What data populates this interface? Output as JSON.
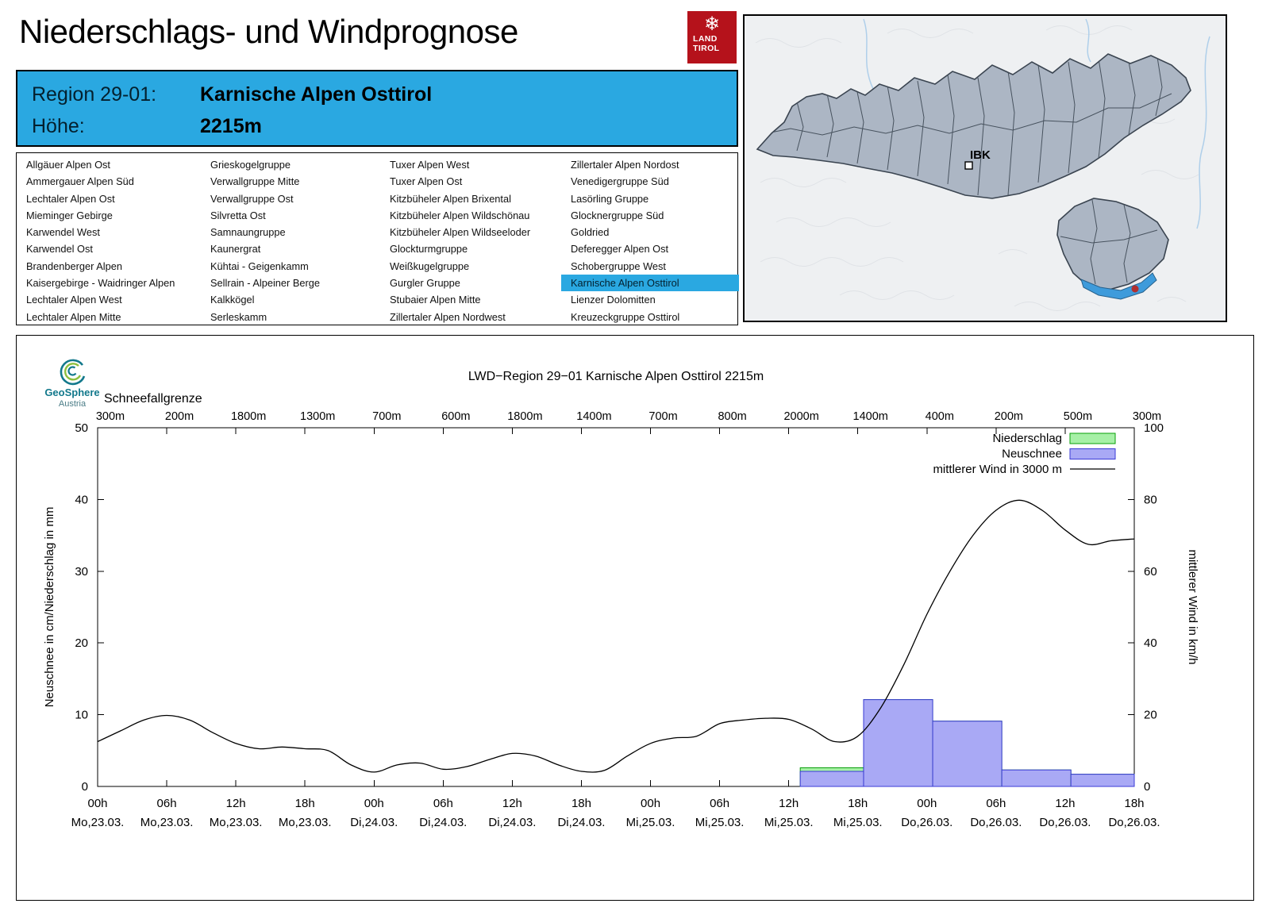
{
  "header": {
    "title": "Niederschlags- und Windprognose",
    "logo_line1": "LAND",
    "logo_line2": "TIROL",
    "logo_color": "#B5121B"
  },
  "region_box": {
    "region_label": "Region 29-01:",
    "region_value": "Karnische Alpen Osttirol",
    "hoehe_label": "Höhe:",
    "hoehe_value": "2215m",
    "background": "#2AA8E1"
  },
  "map": {
    "city_label": "IBK",
    "highlight_region": "Karnische Alpen Osttirol",
    "highlight_color": "#3E9BDB",
    "marker_color": "#B03030"
  },
  "region_list": {
    "selected": "Karnische Alpen Osttirol",
    "columns": [
      [
        "Allgäuer Alpen Ost",
        "Ammergauer Alpen Süd",
        "Lechtaler Alpen Ost",
        "Mieminger Gebirge",
        "Karwendel West",
        "Karwendel Ost",
        "Brandenberger Alpen",
        "Kaisergebirge - Waidringer Alpen",
        "Lechtaler Alpen West",
        "Lechtaler Alpen Mitte"
      ],
      [
        "Grieskogelgruppe",
        "Verwallgruppe Mitte",
        "Verwallgruppe Ost",
        "Silvretta Ost",
        "Samnaungruppe",
        "Kaunergrat",
        "Kühtai - Geigenkamm",
        "Sellrain - Alpeiner Berge",
        "Kalkkögel",
        "Serleskamm"
      ],
      [
        "Tuxer Alpen West",
        "Tuxer Alpen Ost",
        "Kitzbüheler Alpen Brixental",
        "Kitzbüheler Alpen Wildschönau",
        "Kitzbüheler Alpen Wildseeloder",
        "Glockturmgruppe",
        "Weißkugelgruppe",
        "Gurgler Gruppe",
        "Stubaier Alpen Mitte",
        "Zillertaler Alpen Nordwest"
      ],
      [
        "Zillertaler Alpen Nordost",
        "Venedigergruppe Süd",
        "Lasörling Gruppe",
        "Glocknergruppe Süd",
        "Goldried",
        "Deferegger Alpen Ost",
        "Schobergruppe West",
        "Karnische Alpen Osttirol",
        "Lienzer Dolomitten",
        "Kreuzeckgruppe Osttirol"
      ]
    ]
  },
  "geosphere_logo": {
    "name": "GeoSphere",
    "sub": "Austria"
  },
  "chart_data": {
    "type": "bar+line",
    "title": "LWD−Region 29−01 Karnische Alpen Osttirol 2215m",
    "snowline_label": "Schneefallgrenze",
    "snowline_values": [
      "300m",
      "200m",
      "1800m",
      "1300m",
      "700m",
      "600m",
      "1800m",
      "1400m",
      "700m",
      "800m",
      "2000m",
      "1400m",
      "400m",
      "200m",
      "500m",
      "300m"
    ],
    "ylabel_left": "Neuschnee in cm/Niederschlag in mm",
    "ylabel_right": "mittlerer Wind in km/h",
    "ylim_left": [
      0,
      50
    ],
    "yticks_left": [
      0,
      10,
      20,
      30,
      40,
      50
    ],
    "ylim_right": [
      0,
      100
    ],
    "yticks_right": [
      0,
      20,
      40,
      60,
      80,
      100
    ],
    "x_range_hours": [
      0,
      90
    ],
    "x_ticks": [
      {
        "hour": 0,
        "time": "00h",
        "date": "Mo,23.03."
      },
      {
        "hour": 6,
        "time": "06h",
        "date": "Mo,23.03."
      },
      {
        "hour": 12,
        "time": "12h",
        "date": "Mo,23.03."
      },
      {
        "hour": 18,
        "time": "18h",
        "date": "Mo,23.03."
      },
      {
        "hour": 24,
        "time": "00h",
        "date": "Di,24.03."
      },
      {
        "hour": 30,
        "time": "06h",
        "date": "Di,24.03."
      },
      {
        "hour": 36,
        "time": "12h",
        "date": "Di,24.03."
      },
      {
        "hour": 42,
        "time": "18h",
        "date": "Di,24.03."
      },
      {
        "hour": 48,
        "time": "00h",
        "date": "Mi,25.03."
      },
      {
        "hour": 54,
        "time": "06h",
        "date": "Mi,25.03."
      },
      {
        "hour": 60,
        "time": "12h",
        "date": "Mi,25.03."
      },
      {
        "hour": 66,
        "time": "18h",
        "date": "Mi,25.03."
      },
      {
        "hour": 72,
        "time": "00h",
        "date": "Do,26.03."
      },
      {
        "hour": 78,
        "time": "06h",
        "date": "Do,26.03."
      },
      {
        "hour": 84,
        "time": "12h",
        "date": "Do,26.03."
      },
      {
        "hour": 90,
        "time": "18h",
        "date": "Do,26.03."
      }
    ],
    "legend": [
      {
        "label": "Niederschlag",
        "swatch": "bar",
        "fill": "#A6F0A6",
        "stroke": "#0AA00A"
      },
      {
        "label": "Neuschnee",
        "swatch": "bar",
        "fill": "#A9A9F5",
        "stroke": "#3B3BD6"
      },
      {
        "label": "mittlerer Wind in 3000 m",
        "swatch": "line",
        "stroke": "#000000"
      }
    ],
    "bars": [
      {
        "start": 61,
        "end": 66.5,
        "niederschlag_mm": 2.6,
        "neuschnee_cm": 2.1
      },
      {
        "start": 66.5,
        "end": 72.5,
        "niederschlag_mm": 12.1,
        "neuschnee_cm": 12.1
      },
      {
        "start": 72.5,
        "end": 78.5,
        "niederschlag_mm": 9.1,
        "neuschnee_cm": 9.1
      },
      {
        "start": 78.5,
        "end": 84.5,
        "niederschlag_mm": 2.3,
        "neuschnee_cm": 2.3
      },
      {
        "start": 84.5,
        "end": 90,
        "niederschlag_mm": 1.7,
        "neuschnee_cm": 1.7
      }
    ],
    "wind_series": {
      "unit": "km/h",
      "axis": "right",
      "hours": [
        0,
        2,
        4,
        6,
        8,
        10,
        12,
        14,
        16,
        18,
        20,
        22,
        24,
        26,
        28,
        30,
        32,
        34,
        36,
        38,
        40,
        42,
        44,
        46,
        48,
        50,
        52,
        54,
        56,
        58,
        60,
        62,
        64,
        66,
        68,
        70,
        72,
        74,
        76,
        78,
        80,
        82,
        84,
        86,
        88,
        90
      ],
      "values": [
        12.5,
        15.5,
        18.5,
        19.8,
        18.5,
        15,
        12,
        10.5,
        11,
        10.5,
        10,
        6,
        4,
        6,
        6.5,
        4.8,
        5.5,
        7.5,
        9.2,
        8.5,
        6,
        4.2,
        4.5,
        8.5,
        12,
        13.5,
        14,
        17.5,
        18.5,
        19,
        18.7,
        16,
        12.5,
        14,
        22,
        34,
        48,
        60,
        70,
        77,
        79.8,
        77,
        71.5,
        67.5,
        68.5,
        69
      ]
    }
  }
}
